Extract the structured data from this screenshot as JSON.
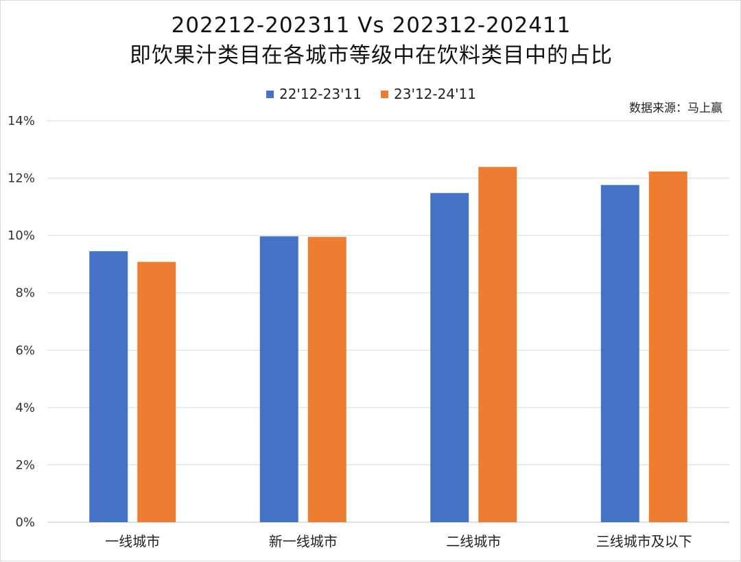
{
  "chart_data": {
    "type": "bar",
    "title": "202212-202311 Vs 202312-202411",
    "subtitle": "即饮果汁类目在各城市等级中在饮料类目中的占比",
    "source": "数据来源：马上赢",
    "categories": [
      "一线城市",
      "新一线城市",
      "二线城市",
      "三线城市及以下"
    ],
    "series": [
      {
        "name": "22'12-23'11",
        "color": "#4472C4",
        "values": [
          9.45,
          9.97,
          11.48,
          11.76
        ]
      },
      {
        "name": "23'12-24'11",
        "color": "#ED7D31",
        "values": [
          9.08,
          9.95,
          12.39,
          12.23
        ]
      }
    ],
    "ylim": [
      0,
      14
    ],
    "yticks": [
      "0%",
      "2%",
      "4%",
      "6%",
      "8%",
      "10%",
      "12%",
      "14%"
    ],
    "grid": true,
    "legend_position": "top"
  }
}
